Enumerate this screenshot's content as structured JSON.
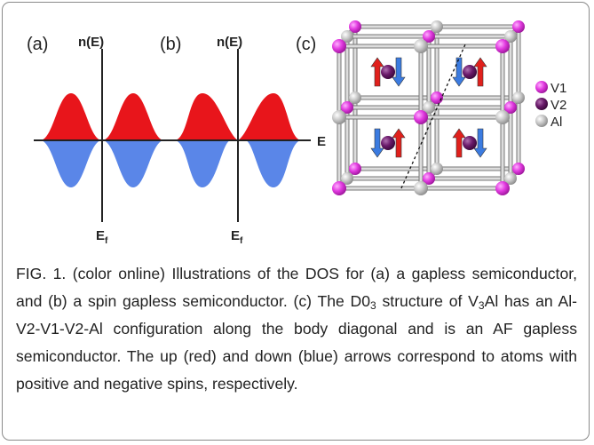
{
  "figure": {
    "panels": [
      {
        "label": "(a)",
        "y_axis": "n(E)",
        "x_axis": "E",
        "fermi": "E",
        "fermi_sub": "f"
      },
      {
        "label": "(b)",
        "y_axis": "n(E)",
        "x_axis": "E",
        "fermi": "E",
        "fermi_sub": "f"
      },
      {
        "label": "(c)"
      }
    ],
    "legend": [
      "V1",
      "V2",
      "Al"
    ]
  },
  "caption": {
    "parts": [
      "FIG. 1. (color online) Illustrations of the DOS for (a) a gapless semiconductor, and (b) a spin gapless semiconductor. (c) The D0",
      "3",
      " structure of V",
      "3",
      "Al has an Al-V2-V1-V2-Al configuration along the body diagonal and is an AF gapless semiconductor. The up (red) and down (blue) arrows correspond to atoms with positive and negative spins, respectively."
    ]
  }
}
